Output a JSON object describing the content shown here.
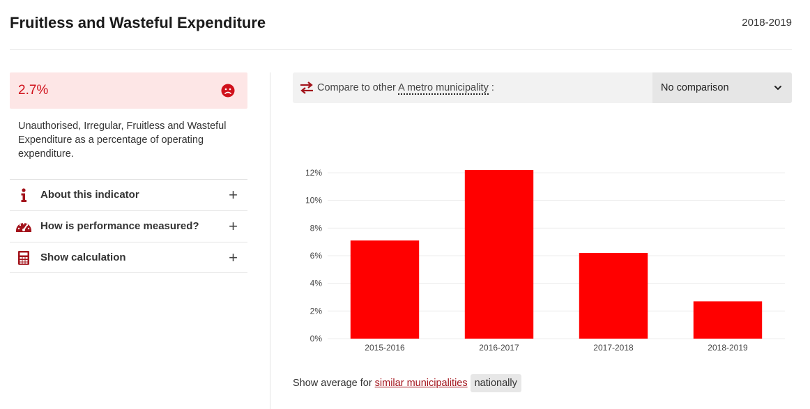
{
  "header": {
    "title": "Fruitless and Wasteful Expenditure",
    "year": "2018-2019"
  },
  "indicator": {
    "value": "2.7%",
    "status_icon": "sad-face-icon",
    "description": "Unauthorised, Irregular, Fruitless and Wasteful Expenditure as a percentage of operating expenditure."
  },
  "accordion": [
    {
      "label": "About this indicator",
      "icon": "info-icon"
    },
    {
      "label": "How is performance measured?",
      "icon": "gauge-icon"
    },
    {
      "label": "Show calculation",
      "icon": "calculator-icon"
    }
  ],
  "compare": {
    "prefix": "Compare to other",
    "term": "A metro municipality",
    "suffix": ":",
    "selected": "No comparison",
    "icon": "swap-arrows-icon"
  },
  "footer": {
    "prefix": "Show average for",
    "link": "similar municipalities",
    "pill": "nationally"
  },
  "colors": {
    "bar": "#ff0000",
    "accent": "#a3141c",
    "value_bg": "#fde6e6",
    "value_text": "#d0111b"
  },
  "chart_data": {
    "type": "bar",
    "categories": [
      "2015-2016",
      "2016-2017",
      "2017-2018",
      "2018-2019"
    ],
    "values": [
      7.1,
      12.2,
      6.2,
      2.7
    ],
    "ylim": [
      0,
      12
    ],
    "yticks": [
      0,
      2,
      4,
      6,
      8,
      10,
      12
    ],
    "ytick_labels": [
      "0%",
      "2%",
      "4%",
      "6%",
      "8%",
      "10%",
      "12%"
    ],
    "grid": true
  }
}
